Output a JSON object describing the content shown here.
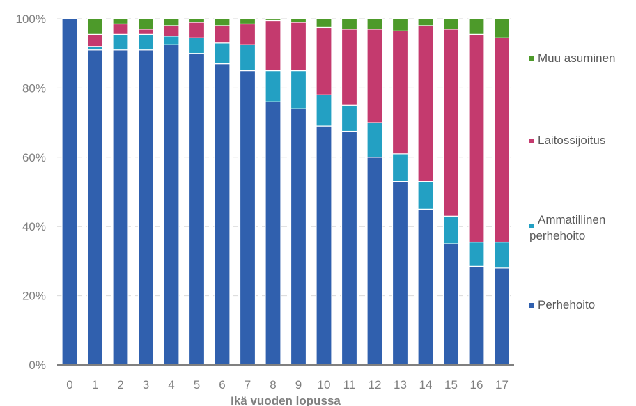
{
  "chart_data": {
    "type": "bar",
    "stacked": true,
    "percent": true,
    "xlabel": "Ikä vuoden lopussa",
    "ylabel": "",
    "ylim": [
      0,
      100
    ],
    "yticks": [
      "0%",
      "20%",
      "40%",
      "60%",
      "80%",
      "100%"
    ],
    "categories": [
      "0",
      "1",
      "2",
      "3",
      "4",
      "5",
      "6",
      "7",
      "8",
      "9",
      "10",
      "11",
      "12",
      "13",
      "14",
      "15",
      "16",
      "17"
    ],
    "series": [
      {
        "name": "Perhehoito",
        "color": "#3060ae",
        "values": [
          100,
          91,
          91,
          91,
          92.5,
          90,
          87,
          85,
          76,
          74,
          69,
          67.5,
          60,
          53,
          45,
          35,
          28.5,
          28
        ]
      },
      {
        "name": "Ammatillinen perhehoito",
        "color": "#23a0c3",
        "values": [
          0,
          1,
          4.5,
          4.5,
          2.5,
          4.5,
          6,
          7.5,
          9,
          11,
          9,
          7.5,
          10,
          8,
          8,
          8,
          7,
          7.5
        ]
      },
      {
        "name": "Laitossijoitus",
        "color": "#c43a6e",
        "values": [
          0,
          3.5,
          3,
          1.5,
          3,
          4.5,
          5,
          6,
          14.5,
          14,
          19.5,
          22,
          27,
          35.5,
          45,
          54,
          60,
          59
        ]
      },
      {
        "name": "Muu asuminen",
        "color": "#4d9a2a",
        "values": [
          0,
          4.5,
          1.5,
          3,
          2,
          1,
          2,
          1.5,
          0.5,
          1,
          2.5,
          3,
          3,
          3.5,
          2,
          3,
          4.5,
          5.5
        ]
      }
    ],
    "legend_position": "right",
    "legend": [
      "Muu asuminen",
      "Laitossijoitus",
      "Ammatillinen perhehoito",
      "Perhehoito"
    ],
    "grid": true
  }
}
